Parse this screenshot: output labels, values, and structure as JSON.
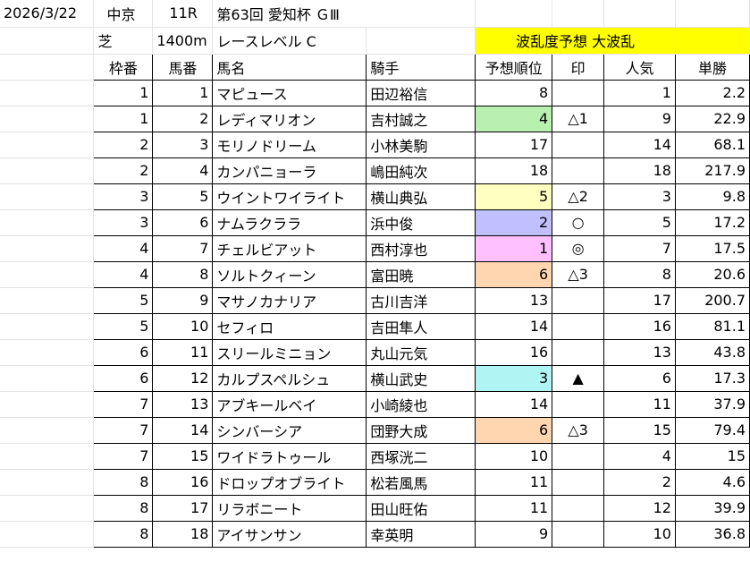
{
  "race": {
    "date": "2026/3/22",
    "venue": "中京",
    "race_no": "11R",
    "title": "第63回 愛知杯 ＧⅢ",
    "surface": "芝",
    "distance": "1400m",
    "level": "レースレベル C",
    "forecast": "波乱度予想 大波乱"
  },
  "columns": [
    "枠番",
    "馬番",
    "馬名",
    "騎手",
    "予想順位",
    "印",
    "人気",
    "単勝"
  ],
  "highlight_colors": {
    "green": "#b8f0b0",
    "yellow": "#ffffc0",
    "blue": "#c0c0ff",
    "pink": "#ffc0ff",
    "orange": "#ffd6b0",
    "cyan": "#b0f4f4",
    "forecast": "#ffff00"
  },
  "rows": [
    {
      "waku": "1",
      "uma": "1",
      "name": "マピュース",
      "jockey": "田辺裕信",
      "rank": "8",
      "mark": "",
      "pop": "1",
      "odds": "2.2",
      "hl": ""
    },
    {
      "waku": "1",
      "uma": "2",
      "name": "レディマリオン",
      "jockey": "吉村誠之",
      "rank": "4",
      "mark": "△1",
      "pop": "9",
      "odds": "22.9",
      "hl": "green"
    },
    {
      "waku": "2",
      "uma": "3",
      "name": "モリノドリーム",
      "jockey": "小林美駒",
      "rank": "17",
      "mark": "",
      "pop": "14",
      "odds": "68.1",
      "hl": ""
    },
    {
      "waku": "2",
      "uma": "4",
      "name": "カンパニョーラ",
      "jockey": "嶋田純次",
      "rank": "18",
      "mark": "",
      "pop": "18",
      "odds": "217.9",
      "hl": ""
    },
    {
      "waku": "3",
      "uma": "5",
      "name": "ウイントワイライト",
      "jockey": "横山典弘",
      "rank": "5",
      "mark": "△2",
      "pop": "3",
      "odds": "9.8",
      "hl": "yellow"
    },
    {
      "waku": "3",
      "uma": "6",
      "name": "ナムラクララ",
      "jockey": "浜中俊",
      "rank": "2",
      "mark": "○",
      "pop": "5",
      "odds": "17.2",
      "hl": "blue"
    },
    {
      "waku": "4",
      "uma": "7",
      "name": "チェルビアット",
      "jockey": "西村淳也",
      "rank": "1",
      "mark": "◎",
      "pop": "7",
      "odds": "17.5",
      "hl": "pink"
    },
    {
      "waku": "4",
      "uma": "8",
      "name": "ソルトクィーン",
      "jockey": "富田暁",
      "rank": "6",
      "mark": "△3",
      "pop": "8",
      "odds": "20.6",
      "hl": "orange"
    },
    {
      "waku": "5",
      "uma": "9",
      "name": "マサノカナリア",
      "jockey": "古川吉洋",
      "rank": "13",
      "mark": "",
      "pop": "17",
      "odds": "200.7",
      "hl": ""
    },
    {
      "waku": "5",
      "uma": "10",
      "name": "セフィロ",
      "jockey": "吉田隼人",
      "rank": "14",
      "mark": "",
      "pop": "16",
      "odds": "81.1",
      "hl": ""
    },
    {
      "waku": "6",
      "uma": "11",
      "name": "スリールミニョン",
      "jockey": "丸山元気",
      "rank": "16",
      "mark": "",
      "pop": "13",
      "odds": "43.8",
      "hl": ""
    },
    {
      "waku": "6",
      "uma": "12",
      "name": "カルプスペルシュ",
      "jockey": "横山武史",
      "rank": "3",
      "mark": "▲",
      "pop": "6",
      "odds": "17.3",
      "hl": "cyan"
    },
    {
      "waku": "7",
      "uma": "13",
      "name": "アブキールベイ",
      "jockey": "小崎綾也",
      "rank": "14",
      "mark": "",
      "pop": "11",
      "odds": "37.9",
      "hl": ""
    },
    {
      "waku": "7",
      "uma": "14",
      "name": "シンバーシア",
      "jockey": "団野大成",
      "rank": "6",
      "mark": "△3",
      "pop": "15",
      "odds": "79.4",
      "hl": "orange"
    },
    {
      "waku": "7",
      "uma": "15",
      "name": "ワイドラトゥール",
      "jockey": "西塚洸二",
      "rank": "10",
      "mark": "",
      "pop": "4",
      "odds": "15",
      "hl": ""
    },
    {
      "waku": "8",
      "uma": "16",
      "name": "ドロップオブライト",
      "jockey": "松若風馬",
      "rank": "11",
      "mark": "",
      "pop": "2",
      "odds": "4.6",
      "hl": ""
    },
    {
      "waku": "8",
      "uma": "17",
      "name": "リラボニート",
      "jockey": "田山旺佑",
      "rank": "11",
      "mark": "",
      "pop": "12",
      "odds": "39.9",
      "hl": ""
    },
    {
      "waku": "8",
      "uma": "18",
      "name": "アイサンサン",
      "jockey": "幸英明",
      "rank": "9",
      "mark": "",
      "pop": "10",
      "odds": "36.8",
      "hl": ""
    }
  ]
}
